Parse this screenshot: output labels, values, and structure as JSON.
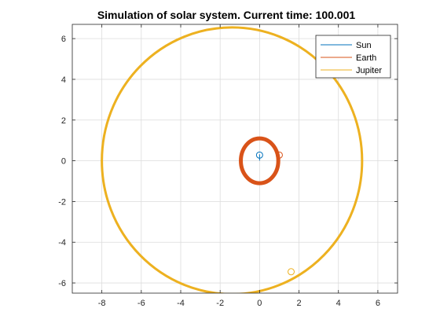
{
  "chart_data": {
    "type": "line",
    "title": "Simulation of solar system. Current time: 100.001",
    "xlabel": "",
    "ylabel": "",
    "xlim": [
      -9.5,
      7
    ],
    "ylim": [
      -6.5,
      6.7
    ],
    "xticks": [
      -8,
      -6,
      -4,
      -2,
      0,
      2,
      4,
      6
    ],
    "yticks": [
      -6,
      -4,
      -2,
      0,
      2,
      4,
      6
    ],
    "xtick_labels": [
      "-8",
      "-6",
      "-4",
      "-2",
      "0",
      "2",
      "4",
      "6"
    ],
    "ytick_labels": [
      "-6",
      "-4",
      "-2",
      "0",
      "2",
      "4",
      "6"
    ],
    "grid": true,
    "legend_position": "top-right",
    "series": [
      {
        "name": "Sun",
        "color": "#0072BD",
        "orbit": {
          "cx": 0.0,
          "cy": 0.0,
          "rx": 0.0,
          "ry": 0.0
        },
        "current_position": {
          "x": 0.0,
          "y": 0.28
        }
      },
      {
        "name": "Earth",
        "color": "#D95319",
        "orbit": {
          "cx": 0.0,
          "cy": 0.0,
          "rx": 0.95,
          "ry": 1.1,
          "band": 0.2
        },
        "current_position": {
          "x": 1.0,
          "y": 0.28
        }
      },
      {
        "name": "Jupiter",
        "color": "#EDB120",
        "orbit": {
          "cx": -1.4,
          "cy": 0.0,
          "rx": 6.6,
          "ry": 6.55,
          "band": 0.12
        },
        "current_position": {
          "x": 1.6,
          "y": -5.45
        }
      }
    ]
  }
}
